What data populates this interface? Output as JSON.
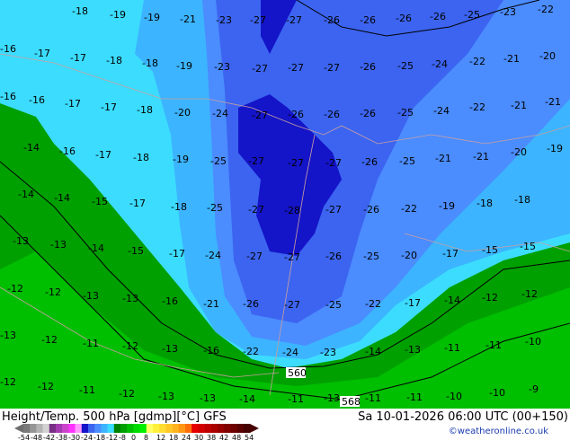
{
  "footer": {
    "title": "Height/Temp. 500 hPa [gdmp][°C] GFS",
    "datetime": "Sa 10-01-2026 06:00 UTC (00+150)",
    "credit": "©weatheronline.co.uk"
  },
  "legend": {
    "ticks": [
      "-54",
      "-48",
      "-42",
      "-38",
      "-30",
      "-24",
      "-18",
      "-12",
      "-8",
      "0",
      "8",
      "12",
      "18",
      "24",
      "30",
      "38",
      "42",
      "48",
      "54"
    ],
    "colors": [
      "#7a7a7a",
      "#969696",
      "#b4b4b4",
      "#d2d2d2",
      "#7a2f86",
      "#a43ab0",
      "#cc44cc",
      "#ff33ff",
      "#ff99ff",
      "#1414c8",
      "#3c64f0",
      "#4b8cff",
      "#3cb4ff",
      "#3cdcff",
      "#008200",
      "#00a000",
      "#00be00",
      "#00dc00",
      "#00f000",
      "#ffff64",
      "#fff03c",
      "#ffdc32",
      "#ffc828",
      "#ffb41e",
      "#ff9614",
      "#ff6e0a",
      "#e60000",
      "#d20000",
      "#be0000",
      "#aa0000",
      "#960000",
      "#820000",
      "#6e0000",
      "#5a0000",
      "#460000"
    ]
  },
  "contours": [
    "560",
    "568"
  ],
  "temperatures": [
    "-18",
    "-19",
    "-19",
    "-21",
    "-23",
    "-27",
    "-27",
    "-26",
    "-26",
    "-26",
    "-26",
    "-25",
    "-23",
    "-22",
    "-16",
    "-17",
    "-17",
    "-18",
    "-18",
    "-19",
    "-23",
    "-27",
    "-27",
    "-27",
    "-26",
    "-25",
    "-24",
    "-22",
    "-21",
    "-20",
    "-16",
    "-16",
    "-17",
    "-17",
    "-18",
    "-20",
    "-24",
    "-27",
    "-26",
    "-26",
    "-26",
    "-25",
    "-24",
    "-22",
    "-21",
    "-21",
    "-14",
    "-16",
    "-17",
    "-18",
    "-19",
    "-25",
    "-27",
    "-27",
    "-27",
    "-26",
    "-25",
    "-21",
    "-21",
    "-20",
    "-19",
    "-14",
    "-14",
    "-15",
    "-17",
    "-18",
    "-25",
    "-27",
    "-28",
    "-27",
    "-26",
    "-22",
    "-19",
    "-18",
    "-18",
    "-13",
    "-13",
    "-14",
    "-15",
    "-17",
    "-24",
    "-27",
    "-27",
    "-26",
    "-25",
    "-20",
    "-17",
    "-15",
    "-15",
    "-12",
    "-12",
    "-13",
    "-13",
    "-16",
    "-21",
    "-26",
    "-27",
    "-25",
    "-22",
    "-17",
    "-14",
    "-12",
    "-12",
    "-13",
    "-12",
    "-11",
    "-12",
    "-13",
    "-16",
    "-22",
    "-24",
    "-23",
    "-14",
    "-13",
    "-11",
    "-11",
    "-10",
    "-12",
    "-12",
    "-11",
    "-12",
    "-13",
    "-13",
    "-14",
    "-11",
    "-13",
    "-11",
    "-11",
    "-10",
    "-10",
    "-9"
  ]
}
